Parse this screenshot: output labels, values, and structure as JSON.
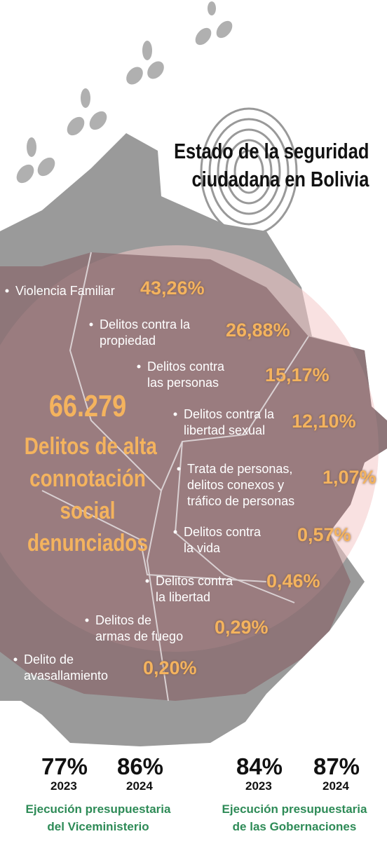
{
  "title_lines": [
    "Estado de la seguridad",
    "ciudadana en Bolivia"
  ],
  "total": {
    "value": "66.279",
    "label_lines": [
      "Delitos de alta",
      "connotación",
      "social",
      "denunciados"
    ]
  },
  "crimes": [
    {
      "label_lines": [
        "Violencia Familiar"
      ],
      "pct": "43,26%"
    },
    {
      "label_lines": [
        "Delitos contra la",
        "propiedad"
      ],
      "pct": "26,88%"
    },
    {
      "label_lines": [
        "Delitos contra",
        "las personas"
      ],
      "pct": "15,17%"
    },
    {
      "label_lines": [
        "Delitos contra la",
        "libertad sexual"
      ],
      "pct": "12,10%"
    },
    {
      "label_lines": [
        "Trata de personas,",
        "delitos conexos y",
        "tráfico de personas"
      ],
      "pct": "1,07%"
    },
    {
      "label_lines": [
        "Delitos contra",
        "la vida"
      ],
      "pct": "0,57%"
    },
    {
      "label_lines": [
        "Delitos contra",
        "la libertad"
      ],
      "pct": "0,46%"
    },
    {
      "label_lines": [
        "Delitos de",
        "armas de fuego"
      ],
      "pct": "0,29%"
    },
    {
      "label_lines": [
        "Delito de",
        "avasallamiento"
      ],
      "pct": "0,20%"
    }
  ],
  "execution": [
    {
      "items": [
        {
          "pct": "77%",
          "year": "2023"
        },
        {
          "pct": "86%",
          "year": "2024"
        }
      ],
      "caption_lines": [
        "Ejecución presupuestaria",
        "del Viceministerio"
      ]
    },
    {
      "items": [
        {
          "pct": "84%",
          "year": "2023"
        },
        {
          "pct": "87%",
          "year": "2024"
        }
      ],
      "caption_lines": [
        "Ejecución presupuestaria",
        "de las Gobernaciones"
      ]
    }
  ]
}
